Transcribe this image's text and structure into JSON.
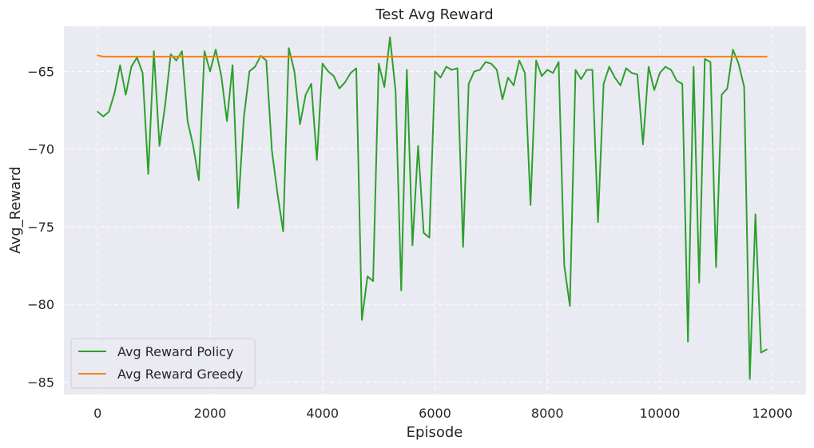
{
  "chart_data": {
    "type": "line",
    "title": "Test Avg Reward",
    "xlabel": "Episode",
    "ylabel": "Avg_Reward",
    "xlim": [
      -600,
      12600
    ],
    "ylim": [
      -85.8,
      -62.1
    ],
    "xticks": [
      0,
      2000,
      4000,
      6000,
      8000,
      10000,
      12000
    ],
    "xtick_labels": [
      "0",
      "2000",
      "4000",
      "6000",
      "8000",
      "10000",
      "12000"
    ],
    "yticks": [
      -85,
      -80,
      -75,
      -70,
      -65
    ],
    "ytick_labels": [
      "−85",
      "−80",
      "−75",
      "−70",
      "−65"
    ],
    "grid": true,
    "legend_position": "lower-left",
    "colors": {
      "background": "#EAEAF2",
      "grid": "#FFFFFF",
      "policy": "#2CA02C",
      "greedy": "#FF7F0E"
    },
    "series": [
      {
        "name": "Avg Reward Policy",
        "color": "#2CA02C",
        "x": [
          0,
          100,
          200,
          300,
          400,
          500,
          600,
          700,
          800,
          900,
          1000,
          1100,
          1200,
          1300,
          1400,
          1500,
          1600,
          1700,
          1800,
          1900,
          2000,
          2100,
          2200,
          2300,
          2400,
          2500,
          2600,
          2700,
          2800,
          2900,
          3000,
          3100,
          3200,
          3300,
          3400,
          3500,
          3600,
          3700,
          3800,
          3900,
          4000,
          4100,
          4200,
          4300,
          4400,
          4500,
          4600,
          4700,
          4800,
          4900,
          5000,
          5100,
          5200,
          5300,
          5400,
          5500,
          5600,
          5700,
          5800,
          5900,
          6000,
          6100,
          6200,
          6300,
          6400,
          6500,
          6600,
          6700,
          6800,
          6900,
          7000,
          7100,
          7200,
          7300,
          7400,
          7500,
          7600,
          7700,
          7800,
          7900,
          8000,
          8100,
          8200,
          8300,
          8400,
          8500,
          8600,
          8700,
          8800,
          8900,
          9000,
          9100,
          9200,
          9300,
          9400,
          9500,
          9600,
          9700,
          9800,
          9900,
          10000,
          10100,
          10200,
          10300,
          10400,
          10500,
          10600,
          10700,
          10800,
          10900,
          11000,
          11100,
          11200,
          11300,
          11400,
          11500,
          11600,
          11700,
          11800,
          11900
        ],
        "y": [
          -67.6,
          -67.9,
          -67.6,
          -66.4,
          -64.6,
          -66.5,
          -64.7,
          -64.1,
          -65.1,
          -71.6,
          -63.7,
          -69.8,
          -67.2,
          -63.9,
          -64.3,
          -63.7,
          -68.2,
          -69.8,
          -72.0,
          -63.7,
          -65.0,
          -63.6,
          -65.3,
          -68.2,
          -64.6,
          -73.8,
          -68.0,
          -65.0,
          -64.7,
          -64.0,
          -64.3,
          -70.1,
          -72.9,
          -75.3,
          -63.5,
          -65.0,
          -68.4,
          -66.5,
          -65.8,
          -70.7,
          -64.5,
          -65.0,
          -65.3,
          -66.1,
          -65.7,
          -65.1,
          -64.8,
          -81.0,
          -78.2,
          -78.5,
          -64.5,
          -66.0,
          -62.8,
          -66.3,
          -79.1,
          -64.9,
          -76.2,
          -69.8,
          -75.4,
          -75.7,
          -65.0,
          -65.4,
          -64.7,
          -64.9,
          -64.8,
          -76.3,
          -65.8,
          -65.0,
          -64.9,
          -64.4,
          -64.5,
          -64.9,
          -66.8,
          -65.4,
          -65.9,
          -64.3,
          -65.1,
          -73.6,
          -64.3,
          -65.3,
          -64.9,
          -65.1,
          -64.4,
          -77.5,
          -80.1,
          -64.9,
          -65.5,
          -64.9,
          -64.9,
          -74.7,
          -65.8,
          -64.7,
          -65.4,
          -65.9,
          -64.8,
          -65.1,
          -65.2,
          -69.7,
          -64.7,
          -66.2,
          -65.1,
          -64.7,
          -64.9,
          -65.6,
          -65.8,
          -82.4,
          -64.7,
          -78.6,
          -64.2,
          -64.4,
          -77.6,
          -66.5,
          -66.1,
          -63.6,
          -64.5,
          -66.0,
          -84.8,
          -74.2,
          -83.1,
          -82.9
        ]
      },
      {
        "name": "Avg Reward Greedy",
        "color": "#FF7F0E",
        "x": [
          0,
          100,
          2000,
          6000,
          10000,
          11900
        ],
        "y": [
          -63.97,
          -64.05,
          -64.05,
          -64.05,
          -64.05,
          -64.05
        ]
      }
    ]
  }
}
